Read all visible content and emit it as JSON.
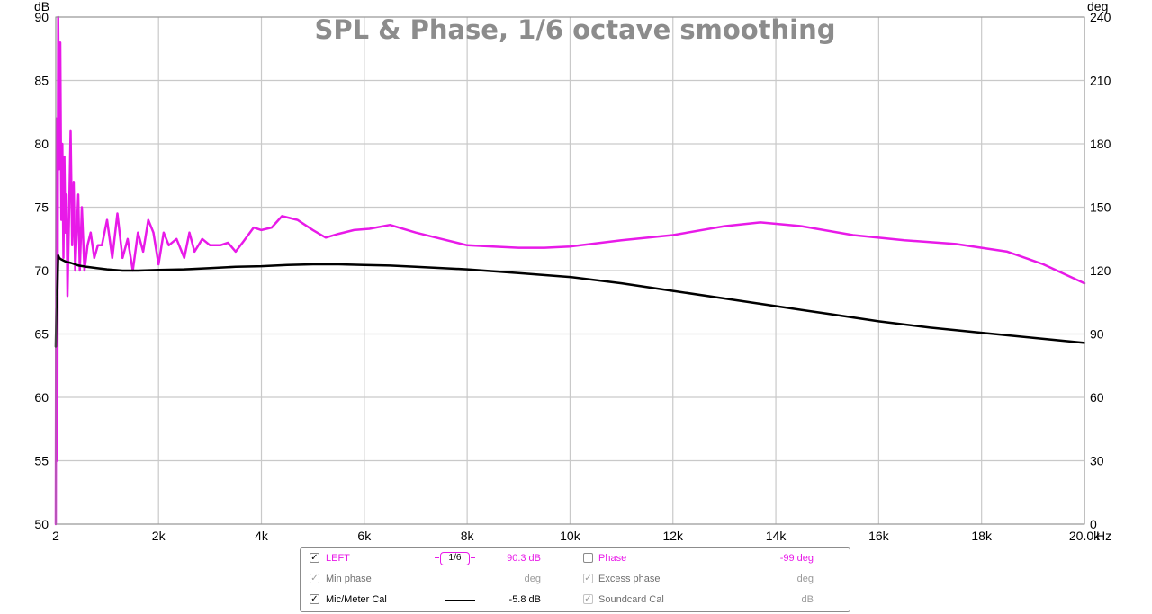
{
  "chart_data": {
    "type": "line",
    "title": "SPL & Phase, 1/6 octave smoothing",
    "x_unit": "Hz",
    "xlim": [
      2,
      20000
    ],
    "x_ticks": [
      {
        "v": 2,
        "label": "2"
      },
      {
        "v": 2000,
        "label": "2k"
      },
      {
        "v": 4000,
        "label": "4k"
      },
      {
        "v": 6000,
        "label": "6k"
      },
      {
        "v": 8000,
        "label": "8k"
      },
      {
        "v": 10000,
        "label": "10k"
      },
      {
        "v": 12000,
        "label": "12k"
      },
      {
        "v": 14000,
        "label": "14k"
      },
      {
        "v": 16000,
        "label": "16k"
      },
      {
        "v": 18000,
        "label": "18k"
      },
      {
        "v": 20000,
        "label": "20.0k"
      }
    ],
    "y_left": {
      "unit": "dB",
      "lim": [
        50,
        90
      ],
      "ticks": [
        50,
        55,
        60,
        65,
        70,
        75,
        80,
        85,
        90
      ]
    },
    "y_right": {
      "unit": "deg",
      "lim": [
        0,
        240
      ],
      "ticks": [
        0,
        30,
        60,
        90,
        120,
        150,
        180,
        210,
        240
      ]
    },
    "grid": true,
    "series": [
      {
        "name": "LEFT",
        "color": "#e81ae8",
        "points": [
          [
            2,
            50
          ],
          [
            15,
            82
          ],
          [
            30,
            55
          ],
          [
            50,
            90
          ],
          [
            70,
            78
          ],
          [
            90,
            88
          ],
          [
            110,
            74
          ],
          [
            130,
            80
          ],
          [
            150,
            71
          ],
          [
            170,
            79
          ],
          [
            190,
            73
          ],
          [
            210,
            76
          ],
          [
            230,
            68
          ],
          [
            260,
            74
          ],
          [
            290,
            81
          ],
          [
            320,
            72
          ],
          [
            350,
            77
          ],
          [
            380,
            70
          ],
          [
            410,
            73
          ],
          [
            440,
            76
          ],
          [
            470,
            70
          ],
          [
            510,
            75
          ],
          [
            560,
            70
          ],
          [
            620,
            72
          ],
          [
            680,
            73
          ],
          [
            750,
            71
          ],
          [
            820,
            72
          ],
          [
            900,
            72
          ],
          [
            1000,
            74
          ],
          [
            1100,
            71
          ],
          [
            1200,
            74.5
          ],
          [
            1300,
            71
          ],
          [
            1400,
            72.5
          ],
          [
            1500,
            70
          ],
          [
            1600,
            73
          ],
          [
            1700,
            71.5
          ],
          [
            1800,
            74
          ],
          [
            1900,
            73
          ],
          [
            2000,
            70.5
          ],
          [
            2100,
            73
          ],
          [
            2200,
            72
          ],
          [
            2350,
            72.5
          ],
          [
            2500,
            71
          ],
          [
            2600,
            73
          ],
          [
            2700,
            71.5
          ],
          [
            2850,
            72.5
          ],
          [
            3000,
            72
          ],
          [
            3200,
            72
          ],
          [
            3350,
            72.2
          ],
          [
            3500,
            71.5
          ],
          [
            3650,
            72.3
          ],
          [
            3850,
            73.4
          ],
          [
            4000,
            73.2
          ],
          [
            4200,
            73.4
          ],
          [
            4400,
            74.3
          ],
          [
            4700,
            74
          ],
          [
            5000,
            73.2
          ],
          [
            5250,
            72.6
          ],
          [
            5500,
            72.9
          ],
          [
            5800,
            73.2
          ],
          [
            6100,
            73.3
          ],
          [
            6500,
            73.6
          ],
          [
            7000,
            73
          ],
          [
            7500,
            72.5
          ],
          [
            8000,
            72
          ],
          [
            8500,
            71.9
          ],
          [
            9000,
            71.8
          ],
          [
            9500,
            71.8
          ],
          [
            10000,
            71.9
          ],
          [
            11000,
            72.4
          ],
          [
            12000,
            72.8
          ],
          [
            13000,
            73.5
          ],
          [
            13700,
            73.8
          ],
          [
            14500,
            73.5
          ],
          [
            15500,
            72.8
          ],
          [
            16500,
            72.4
          ],
          [
            17500,
            72.1
          ],
          [
            18500,
            71.5
          ],
          [
            19200,
            70.5
          ],
          [
            20000,
            69
          ]
        ]
      },
      {
        "name": "Mic/Meter Cal",
        "color": "#000000",
        "points": [
          [
            2,
            64
          ],
          [
            15,
            67
          ],
          [
            30,
            68
          ],
          [
            50,
            71.2
          ],
          [
            70,
            71
          ],
          [
            100,
            70.9
          ],
          [
            150,
            70.8
          ],
          [
            200,
            70.7
          ],
          [
            300,
            70.6
          ],
          [
            450,
            70.4
          ],
          [
            600,
            70.3
          ],
          [
            800,
            70.2
          ],
          [
            1000,
            70.1
          ],
          [
            1300,
            70
          ],
          [
            1600,
            70
          ],
          [
            2000,
            70.05
          ],
          [
            2500,
            70.1
          ],
          [
            3000,
            70.2
          ],
          [
            3500,
            70.3
          ],
          [
            4000,
            70.35
          ],
          [
            4500,
            70.45
          ],
          [
            5000,
            70.5
          ],
          [
            5500,
            70.5
          ],
          [
            6000,
            70.45
          ],
          [
            6500,
            70.4
          ],
          [
            7000,
            70.3
          ],
          [
            8000,
            70.1
          ],
          [
            9000,
            69.8
          ],
          [
            10000,
            69.5
          ],
          [
            11000,
            69
          ],
          [
            12000,
            68.4
          ],
          [
            13000,
            67.8
          ],
          [
            14000,
            67.2
          ],
          [
            15000,
            66.6
          ],
          [
            16000,
            66
          ],
          [
            17000,
            65.5
          ],
          [
            18000,
            65.1
          ],
          [
            19000,
            64.7
          ],
          [
            20000,
            64.3
          ]
        ]
      }
    ]
  },
  "legend": {
    "rows": [
      {
        "check": "✓",
        "label": "LEFT",
        "smoothing": "1/6",
        "value": "90.3 dB",
        "check2": "",
        "label2": "Phase",
        "value2": "-99 deg"
      },
      {
        "check": "✓",
        "label": "Min phase",
        "value": "deg",
        "check2": "✓",
        "label2": "Excess phase",
        "value2": "deg"
      },
      {
        "check": "✓",
        "label": "Mic/Meter Cal",
        "value": "-5.8 dB",
        "check2": "✓",
        "label2": "Soundcard Cal",
        "value2": "dB"
      }
    ]
  }
}
